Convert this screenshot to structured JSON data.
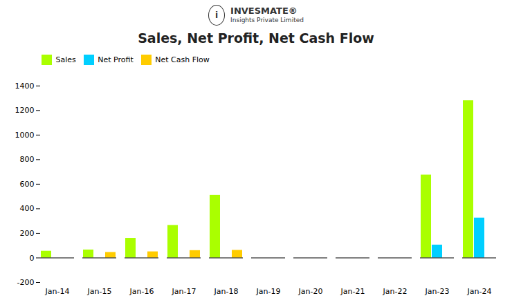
{
  "chart_data": {
    "type": "bar",
    "title": "Sales, Net Profit, Net Cash Flow",
    "categories": [
      "Jan-14",
      "Jan-15",
      "Jan-16",
      "Jan-17",
      "Jan-18",
      "Jan-19",
      "Jan-20",
      "Jan-21",
      "Jan-22",
      "Jan-23",
      "Jan-24"
    ],
    "series": [
      {
        "name": "Sales",
        "color": "#aaff00",
        "values": [
          55,
          65,
          160,
          265,
          510,
          0,
          0,
          0,
          0,
          675,
          1280
        ]
      },
      {
        "name": "Net Profit",
        "color": "#00cfff",
        "values": [
          0,
          0,
          0,
          0,
          0,
          0,
          0,
          0,
          0,
          105,
          325
        ]
      },
      {
        "name": "Net Cash Flow",
        "color": "#ffcc00",
        "values": [
          0,
          45,
          50,
          60,
          62,
          0,
          0,
          0,
          0,
          0,
          0
        ]
      }
    ],
    "ylim": [
      -200,
      1500
    ],
    "yticks": [
      -200,
      0,
      200,
      400,
      600,
      800,
      1000,
      1200,
      1400
    ],
    "grid": false,
    "legend": "upper left",
    "annotations": [
      "i",
      "INVESMATE®",
      "Insights Private Limited"
    ]
  }
}
